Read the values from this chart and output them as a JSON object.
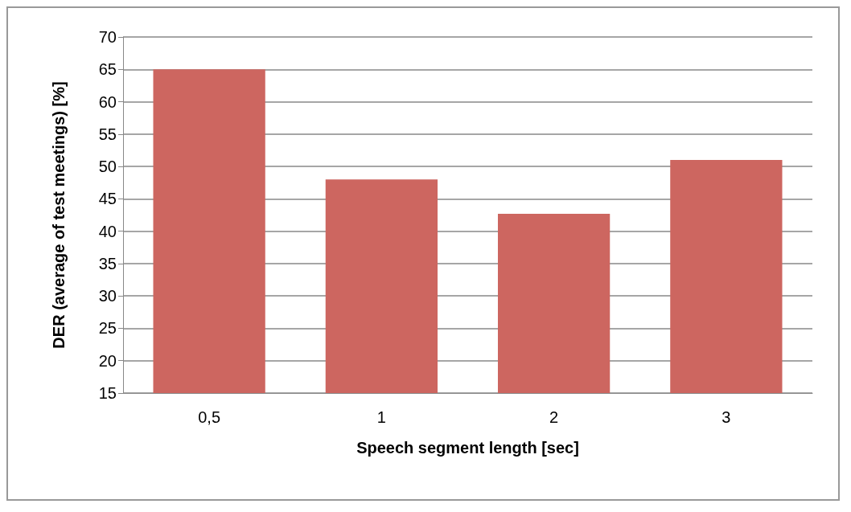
{
  "chart_data": {
    "type": "bar",
    "xlabel": "Speech segment length [sec]",
    "ylabel": "DER (average of test meetings) [%]",
    "categories": [
      "0,5",
      "1",
      "2",
      "3"
    ],
    "values": [
      65,
      48,
      42.7,
      51
    ],
    "color": "#cd6660",
    "ylim": [
      15,
      70
    ],
    "yticks": [
      15,
      20,
      25,
      30,
      35,
      40,
      45,
      50,
      55,
      60,
      65,
      70
    ],
    "grid": "y"
  }
}
